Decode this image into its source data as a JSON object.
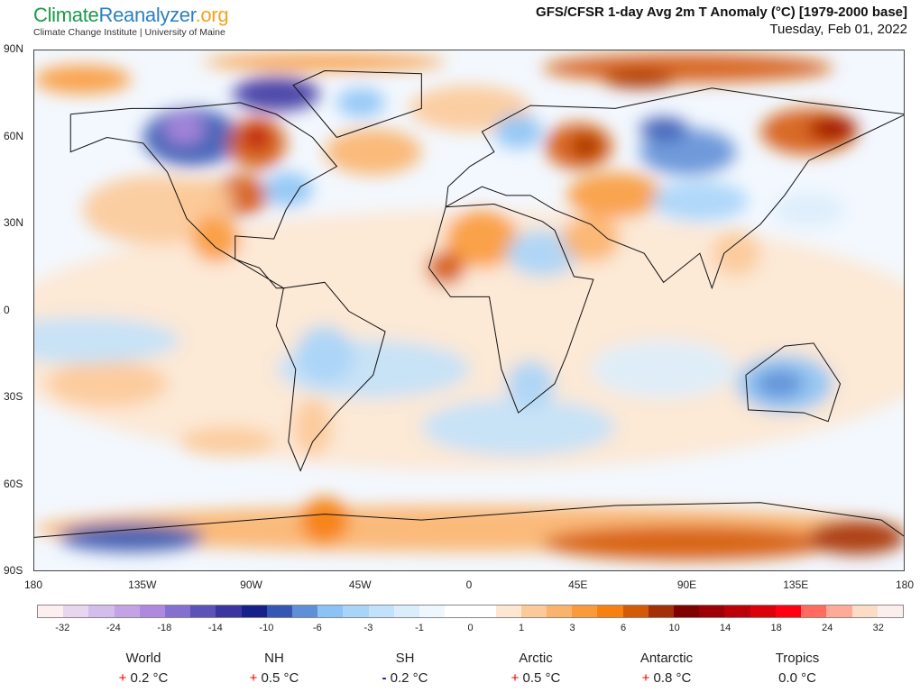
{
  "header": {
    "logo": {
      "part1": "Climate",
      "part2": "Reanalyzer",
      "part3": ".org"
    },
    "subtitle": "Climate Change Institute | University of Maine",
    "title": "GFS/CFSR 1-day Avg 2m T Anomaly (°C) [1979-2000 base]",
    "date": "Tuesday, Feb 01, 2022"
  },
  "map": {
    "lat_labels": [
      "90N",
      "60N",
      "30N",
      "0",
      "30S",
      "60S",
      "90S"
    ],
    "lon_labels": [
      "180",
      "135W",
      "90W",
      "45W",
      "0",
      "45E",
      "90E",
      "135E",
      "180"
    ]
  },
  "colorbar": {
    "labels": [
      "-32",
      "-24",
      "-18",
      "-14",
      "-10",
      "-6",
      "-3",
      "-1",
      "0",
      "1",
      "3",
      "6",
      "10",
      "14",
      "18",
      "24",
      "32"
    ],
    "colors": [
      "#fdeef0",
      "#e8d5ee",
      "#d4bdea",
      "#c3a3e6",
      "#ae89df",
      "#8670cf",
      "#5c52b8",
      "#3b35a0",
      "#16208a",
      "#3656b4",
      "#5f8fd6",
      "#8cc3f5",
      "#a8d4f8",
      "#c2e1fa",
      "#dbedfc",
      "#eef6fe",
      "#ffffff",
      "#ffffff",
      "#fde7d2",
      "#fcc998",
      "#fbb36b",
      "#fa9a3a",
      "#f78011",
      "#d55a08",
      "#a53007",
      "#800000",
      "#9c0006",
      "#bb0008",
      "#db000a",
      "#ff0012",
      "#ff6b5e",
      "#ffaa98",
      "#fbdcc4",
      "#fdeeee"
    ]
  },
  "stats": [
    {
      "name": "World",
      "sign": "+",
      "value": "0.2 °C"
    },
    {
      "name": "NH",
      "sign": "+",
      "value": "0.5 °C"
    },
    {
      "name": "SH",
      "sign": "-",
      "value": "0.2 °C"
    },
    {
      "name": "Arctic",
      "sign": "+",
      "value": "0.5 °C"
    },
    {
      "name": "Antarctic",
      "sign": "+",
      "value": "0.8 °C"
    },
    {
      "name": "Tropics",
      "sign": "",
      "value": "0.0 °C"
    }
  ]
}
